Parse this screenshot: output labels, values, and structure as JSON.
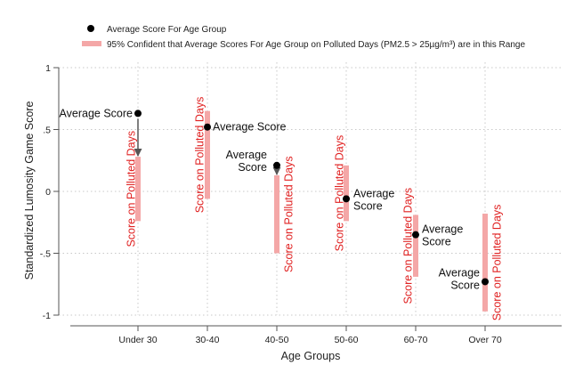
{
  "chart_data": {
    "type": "scatter",
    "xlabel": "Age Groups",
    "ylabel": "Standardized Lumosity Game Score",
    "categories": [
      "Under 30",
      "30-40",
      "40-50",
      "50-60",
      "60-70",
      "Over 70"
    ],
    "ylim": [
      -1,
      1
    ],
    "yticks": [
      "-1",
      "-.5",
      "0",
      ".5",
      "1"
    ],
    "ytick_values": [
      -1,
      -0.5,
      0,
      0.5,
      1
    ],
    "grid": true,
    "legend_position": "top-left",
    "legend": [
      {
        "key": "point",
        "label": "Average Score For Age Group"
      },
      {
        "key": "range",
        "label": "95% Confident that Average Scores For Age Group on Polluted Days (PM2.5 > 25µg/m³) are in this Range"
      }
    ],
    "series": [
      {
        "name": "Average Score For Age Group",
        "values": [
          0.63,
          0.52,
          0.21,
          -0.06,
          -0.35,
          -0.73
        ]
      },
      {
        "name": "95% Confident that Average Scores For Age Group on Polluted Days (PM2.5 > 25µg/m³) are in this Range",
        "intervals": [
          [
            -0.24,
            0.28
          ],
          [
            -0.06,
            0.65
          ],
          [
            -0.5,
            0.13
          ],
          [
            -0.24,
            0.21
          ],
          [
            -0.69,
            -0.19
          ],
          [
            -0.97,
            -0.18
          ]
        ]
      }
    ],
    "annotations": {
      "average_score": "Average Score",
      "average_score_split": [
        "Average",
        "Score"
      ],
      "polluted_days": "Score on Polluted Days"
    },
    "colors": {
      "point": "#000000",
      "range": "#f4a7a7",
      "range_text": "#e02020",
      "arrow": "#555555",
      "grid": "#c8c8c8",
      "axis": "#555555"
    }
  }
}
